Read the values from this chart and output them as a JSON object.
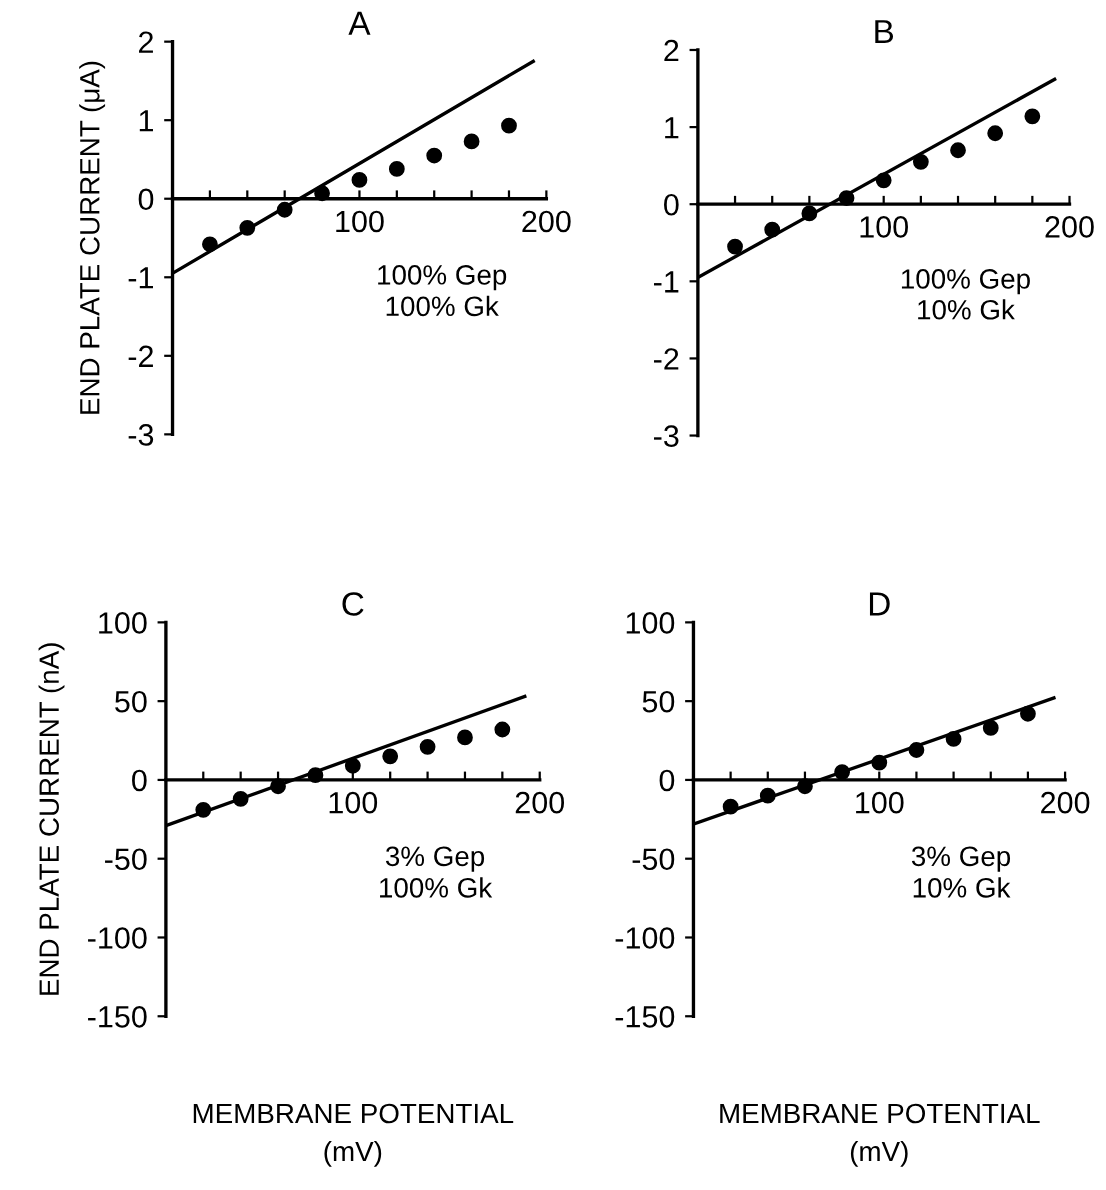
{
  "chart_data": [
    {
      "type": "scatter",
      "title": "A",
      "ylabel": "END PLATE CURRENT (μA)",
      "annotations": [
        "100% Gep",
        "100% Gk"
      ],
      "xlim": [
        0,
        200
      ],
      "ylim": [
        -3,
        2
      ],
      "xticks": [
        {
          "value": 20,
          "label": null
        },
        {
          "value": 40,
          "label": null
        },
        {
          "value": 60,
          "label": null
        },
        {
          "value": 80,
          "label": null
        },
        100,
        {
          "value": 120,
          "label": null
        },
        {
          "value": 140,
          "label": null
        },
        {
          "value": 160,
          "label": null
        },
        {
          "value": 180,
          "label": null
        },
        200
      ],
      "yticks": [
        -3,
        -2,
        -1,
        0,
        1,
        2
      ],
      "grid": false,
      "legend": false,
      "x": [
        20,
        40,
        60,
        80,
        100,
        120,
        140,
        160,
        180
      ],
      "series": [
        {
          "marker": "circle",
          "color": "#000000",
          "values": [
            -0.58,
            -0.37,
            -0.14,
            0.07,
            0.24,
            0.38,
            0.55,
            0.73,
            0.93
          ]
        },
        {
          "type": "line",
          "color": "#000000",
          "x": [
            0,
            193
          ],
          "values": [
            -0.95,
            1.75
          ]
        }
      ]
    },
    {
      "type": "scatter",
      "title": "B",
      "annotations": [
        "100% Gep",
        "10% Gk"
      ],
      "xlim": [
        0,
        200
      ],
      "ylim": [
        -3,
        2
      ],
      "xticks": [
        {
          "value": 20,
          "label": null
        },
        {
          "value": 40,
          "label": null
        },
        {
          "value": 60,
          "label": null
        },
        {
          "value": 80,
          "label": null
        },
        100,
        {
          "value": 120,
          "label": null
        },
        {
          "value": 140,
          "label": null
        },
        {
          "value": 160,
          "label": null
        },
        {
          "value": 180,
          "label": null
        },
        200
      ],
      "yticks": [
        -3,
        -2,
        -1,
        0,
        1,
        2
      ],
      "grid": false,
      "legend": false,
      "x": [
        20,
        40,
        60,
        80,
        100,
        120,
        140,
        160,
        180
      ],
      "series": [
        {
          "marker": "circle",
          "color": "#000000",
          "values": [
            -0.55,
            -0.33,
            -0.12,
            0.08,
            0.31,
            0.55,
            0.7,
            0.92,
            1.14
          ]
        },
        {
          "type": "line",
          "color": "#000000",
          "x": [
            0,
            192
          ],
          "values": [
            -0.95,
            1.62
          ]
        }
      ]
    },
    {
      "type": "scatter",
      "title": "C",
      "ylabel": "END PLATE CURRENT (nA)",
      "xlabel": "MEMBRANE POTENTIAL\n(mV)",
      "annotations": [
        "3% Gep",
        "100% Gk"
      ],
      "xlim": [
        0,
        200
      ],
      "ylim": [
        -150,
        100
      ],
      "xticks": [
        {
          "value": 20,
          "label": null
        },
        {
          "value": 40,
          "label": null
        },
        {
          "value": 60,
          "label": null
        },
        {
          "value": 80,
          "label": null
        },
        100,
        {
          "value": 120,
          "label": null
        },
        {
          "value": 140,
          "label": null
        },
        {
          "value": 160,
          "label": null
        },
        {
          "value": 180,
          "label": null
        },
        200
      ],
      "yticks": [
        -150,
        -100,
        -50,
        0,
        50,
        100
      ],
      "grid": false,
      "legend": false,
      "x": [
        20,
        40,
        60,
        80,
        100,
        120,
        140,
        160,
        180
      ],
      "series": [
        {
          "marker": "circle",
          "color": "#000000",
          "values": [
            -19,
            -12,
            -4,
            3,
            9,
            15,
            21,
            27,
            32
          ]
        },
        {
          "type": "line",
          "color": "#000000",
          "x": [
            0,
            192
          ],
          "values": [
            -29,
            53
          ]
        }
      ]
    },
    {
      "type": "scatter",
      "title": "D",
      "xlabel": "MEMBRANE POTENTIAL\n(mV)",
      "annotations": [
        "3% Gep",
        "10% Gk"
      ],
      "xlim": [
        0,
        200
      ],
      "ylim": [
        -150,
        100
      ],
      "xticks": [
        {
          "value": 20,
          "label": null
        },
        {
          "value": 40,
          "label": null
        },
        {
          "value": 60,
          "label": null
        },
        {
          "value": 80,
          "label": null
        },
        100,
        {
          "value": 120,
          "label": null
        },
        {
          "value": 140,
          "label": null
        },
        {
          "value": 160,
          "label": null
        },
        {
          "value": 180,
          "label": null
        },
        200
      ],
      "yticks": [
        -150,
        -100,
        -50,
        0,
        50,
        100
      ],
      "grid": false,
      "legend": false,
      "x": [
        20,
        40,
        60,
        80,
        100,
        120,
        140,
        160,
        180
      ],
      "series": [
        {
          "marker": "circle",
          "color": "#000000",
          "values": [
            -17,
            -10,
            -4,
            5,
            11,
            19,
            26,
            33,
            42
          ]
        },
        {
          "type": "line",
          "color": "#000000",
          "x": [
            0,
            194
          ],
          "values": [
            -28,
            52
          ]
        }
      ]
    }
  ]
}
